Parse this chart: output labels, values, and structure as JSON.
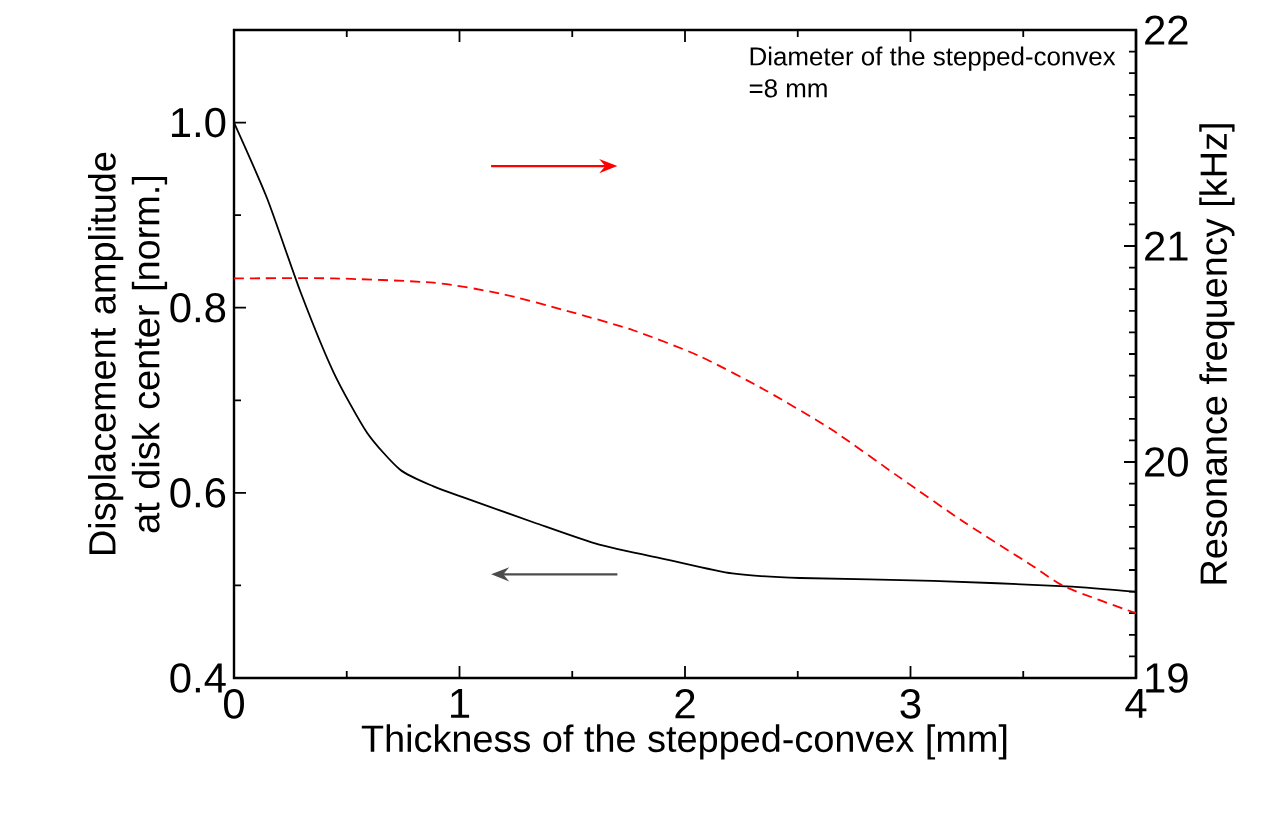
{
  "chart_data": {
    "type": "line",
    "xlabel": "Thickness of the stepped-convex [mm]",
    "ylabel": "Displacement amplitude at disk center [norm.]",
    "y2label": "Resonance frequency [kHz]",
    "annotations": [
      "Diameter of the stepped-convex",
      "=8 mm"
    ],
    "xlim": [
      0,
      4
    ],
    "xticks": [
      0,
      1,
      2,
      3,
      4
    ],
    "ylim": [
      0.4,
      1.1
    ],
    "yticks": [
      0.4,
      0.6,
      0.8,
      {
        "value": 1,
        "label": "1.0"
      }
    ],
    "y2lim": [
      19,
      22
    ],
    "y2ticks": [
      19,
      20,
      21,
      22
    ],
    "series": [
      {
        "color": "#000000",
        "line_style": "solid",
        "axis": "y",
        "x": [
          0,
          0.147,
          0.295,
          0.442,
          0.59,
          0.737,
          0.885,
          1.03,
          1.33,
          1.62,
          1.92,
          2.21,
          2.51,
          3.1,
          3.69,
          4.0
        ],
        "values": [
          1.0,
          0.918,
          0.817,
          0.73,
          0.665,
          0.625,
          0.607,
          0.594,
          0.568,
          0.544,
          0.528,
          0.513,
          0.508,
          0.505,
          0.499,
          0.493
        ]
      },
      {
        "color": "#ff0000",
        "line_style": "dashed",
        "axis": "y2",
        "x": [
          0,
          0.442,
          0.885,
          1.18,
          1.475,
          1.77,
          2.065,
          2.36,
          2.65,
          2.95,
          3.24,
          3.54,
          3.69,
          4.0
        ],
        "values": [
          20.85,
          20.85,
          20.83,
          20.78,
          20.7,
          20.61,
          20.49,
          20.33,
          20.15,
          19.93,
          19.72,
          19.52,
          19.42,
          19.3
        ]
      }
    ]
  }
}
